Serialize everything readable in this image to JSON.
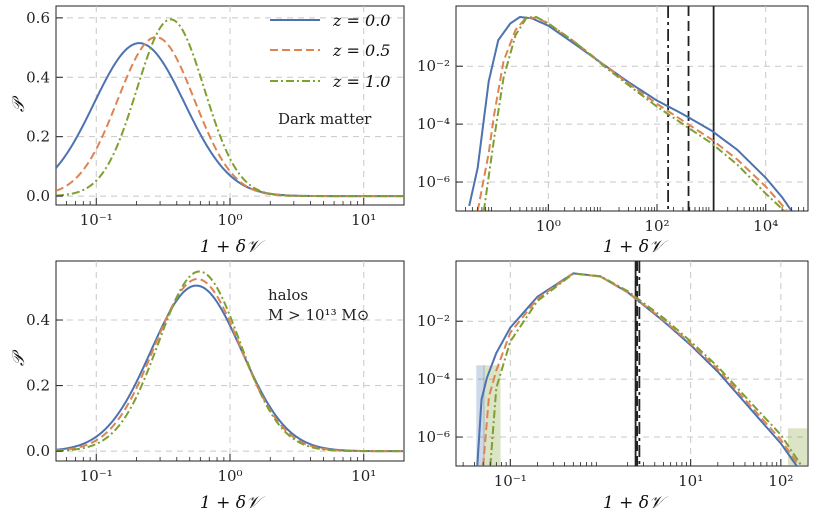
{
  "colors": {
    "z0": "#4c72b0",
    "z05": "#dd8452",
    "z1": "#7f9f2f",
    "vline": "#222222",
    "grid": "#c8c8c8"
  },
  "legend": {
    "entries": [
      {
        "key": "z0",
        "label": "z = 0.0",
        "dash": "solid"
      },
      {
        "key": "z05",
        "label": "z = 0.5",
        "dash": "dashed"
      },
      {
        "key": "z1",
        "label": "z = 1.0",
        "dash": "dashdot"
      }
    ]
  },
  "chart_data": [
    {
      "id": "tl",
      "type": "line",
      "title": "",
      "annotation": [
        "Dark matter"
      ],
      "xlabel": "1 + δ𝒱",
      "ylabel": "𝒫",
      "xscale": "log",
      "yscale": "linear",
      "xlim": [
        0.05,
        20
      ],
      "ylim": [
        -0.03,
        0.64
      ],
      "xticks": [
        0.1,
        1,
        10
      ],
      "xticklabels": [
        "10⁻¹",
        "10⁰",
        "10¹"
      ],
      "yticks": [
        0,
        0.2,
        0.4,
        0.6
      ],
      "yticklabels": [
        "0.0",
        "0.2",
        "0.4",
        "0.6"
      ],
      "series": [
        {
          "name": "z = 0.0",
          "key": "z0",
          "dash": "solid",
          "model": "lognormal",
          "mu": 0.21,
          "sigma": 0.78,
          "amp": 0.515
        },
        {
          "name": "z = 0.5",
          "key": "z05",
          "dash": "dashed",
          "model": "lognormal",
          "mu": 0.28,
          "sigma": 0.66,
          "amp": 0.535
        },
        {
          "name": "z = 1.0",
          "key": "z1",
          "dash": "dashdot",
          "model": "lognormal",
          "mu": 0.36,
          "sigma": 0.58,
          "amp": 0.595
        }
      ]
    },
    {
      "id": "tr",
      "type": "line",
      "title": "",
      "annotation": [],
      "xlabel": "1 + δ𝒱",
      "ylabel": "",
      "xscale": "log",
      "yscale": "log",
      "xlim": [
        0.02,
        60000
      ],
      "ylim": [
        1e-07,
        1.2
      ],
      "xticks": [
        1,
        100,
        10000
      ],
      "xticklabels": [
        "10⁰",
        "10²",
        "10⁴"
      ],
      "yticks": [
        1e-06,
        0.0001,
        0.01
      ],
      "yticklabels": [
        "10⁻⁶",
        "10⁻⁴",
        "10⁻²"
      ],
      "vlines": [
        {
          "x": 160,
          "dash": "dashdot"
        },
        {
          "x": 380,
          "dash": "dashed"
        },
        {
          "x": 1100,
          "dash": "solid"
        }
      ],
      "series": [
        {
          "name": "z = 0.0",
          "key": "z0",
          "dash": "solid",
          "model": "points",
          "x": [
            0.035,
            0.05,
            0.08,
            0.12,
            0.2,
            0.3,
            0.5,
            1,
            3,
            10,
            30,
            100,
            300,
            1000,
            3000,
            10000,
            20000,
            30000
          ],
          "y": [
            1.5e-07,
            3e-06,
            0.003,
            0.08,
            0.3,
            0.5,
            0.45,
            0.25,
            0.06,
            0.012,
            0.0028,
            0.00065,
            0.00022,
            6e-05,
            1.3e-05,
            1.4e-06,
            3e-07,
            1e-07
          ]
        },
        {
          "name": "z = 0.5",
          "key": "z05",
          "dash": "dashed",
          "model": "points",
          "x": [
            0.05,
            0.08,
            0.1,
            0.15,
            0.25,
            0.38,
            0.6,
            1,
            3,
            10,
            30,
            100,
            300,
            1000,
            3000,
            10000,
            25000
          ],
          "y": [
            1e-07,
            1e-05,
            0.0002,
            0.015,
            0.18,
            0.45,
            0.48,
            0.3,
            0.07,
            0.012,
            0.0025,
            0.0005,
            0.00013,
            3e-05,
            6e-06,
            7e-07,
            1e-07
          ]
        },
        {
          "name": "z = 1.0",
          "key": "z1",
          "dash": "dashdot",
          "model": "points",
          "x": [
            0.065,
            0.1,
            0.15,
            0.25,
            0.4,
            0.6,
            1,
            3,
            10,
            30,
            100,
            300,
            1000,
            3000,
            10000,
            22000
          ],
          "y": [
            1e-07,
            3e-05,
            0.004,
            0.12,
            0.48,
            0.5,
            0.3,
            0.07,
            0.011,
            0.0022,
            0.0004,
            0.0001,
            2.2e-05,
            4e-06,
            4e-07,
            1e-07
          ]
        }
      ]
    },
    {
      "id": "bl",
      "type": "line",
      "title": "",
      "annotation": [
        "halos",
        "M > 10¹³ M⊙"
      ],
      "xlabel": "1 + δ𝒱",
      "ylabel": "𝒫",
      "xscale": "log",
      "yscale": "linear",
      "xlim": [
        0.05,
        20
      ],
      "ylim": [
        -0.03,
        0.58
      ],
      "xticks": [
        0.1,
        1,
        10
      ],
      "xticklabels": [
        "10⁻¹",
        "10⁰",
        "10¹"
      ],
      "yticks": [
        0,
        0.2,
        0.4
      ],
      "yticklabels": [
        "0.0",
        "0.2",
        "0.4"
      ],
      "series": [
        {
          "name": "z = 0.0",
          "key": "z0",
          "dash": "solid",
          "model": "lognormal",
          "mu": 0.56,
          "sigma": 0.78,
          "amp": 0.505
        },
        {
          "name": "z = 0.5",
          "key": "z05",
          "dash": "dashed",
          "model": "lognormal",
          "mu": 0.57,
          "sigma": 0.74,
          "amp": 0.525
        },
        {
          "name": "z = 1.0",
          "key": "z1",
          "dash": "dashdot",
          "model": "lognormal",
          "mu": 0.59,
          "sigma": 0.7,
          "amp": 0.548
        }
      ]
    },
    {
      "id": "br",
      "type": "line",
      "title": "",
      "annotation": [],
      "xlabel": "1 + δ𝒱",
      "ylabel": "",
      "xscale": "log",
      "yscale": "log",
      "xlim": [
        0.025,
        200
      ],
      "ylim": [
        1e-07,
        1.2
      ],
      "xticks": [
        0.1,
        10,
        100
      ],
      "xticklabels": [
        "10⁻¹",
        "10¹",
        "10²"
      ],
      "yticks": [
        1e-06,
        0.0001,
        0.01
      ],
      "yticklabels": [
        "10⁻⁶",
        "10⁻⁴",
        "10⁻²"
      ],
      "vlines": [
        {
          "x": 2.45,
          "dash": "solid"
        },
        {
          "x": 2.55,
          "dash": "dashed"
        },
        {
          "x": 2.7,
          "dash": "dashdot"
        }
      ],
      "bands": [
        {
          "key": "z1",
          "x": [
            0.05,
            0.078
          ],
          "ylow": 1e-07,
          "yhigh": 0.0003
        },
        {
          "key": "z1",
          "x": [
            120,
            200
          ],
          "ylow": 1e-07,
          "yhigh": 2e-06
        },
        {
          "key": "z0",
          "x": [
            0.042,
            0.052
          ],
          "ylow": 1e-07,
          "yhigh": 0.0003
        }
      ],
      "series": [
        {
          "name": "z = 0.0",
          "key": "z0",
          "dash": "solid",
          "model": "points",
          "x": [
            0.043,
            0.048,
            0.055,
            0.07,
            0.1,
            0.2,
            0.5,
            1,
            2,
            5,
            10,
            20,
            50,
            100,
            150
          ],
          "y": [
            1e-07,
            2e-05,
            0.00011,
            0.0008,
            0.006,
            0.07,
            0.45,
            0.35,
            0.1,
            0.01,
            0.0015,
            0.00018,
            7e-06,
            6e-07,
            1e-07
          ]
        },
        {
          "name": "z = 0.5",
          "key": "z05",
          "dash": "dashed",
          "model": "points",
          "x": [
            0.05,
            0.058,
            0.07,
            0.1,
            0.2,
            0.5,
            1,
            2,
            5,
            10,
            20,
            50,
            100,
            160
          ],
          "y": [
            1e-07,
            2.5e-05,
            0.0002,
            0.004,
            0.06,
            0.45,
            0.35,
            0.1,
            0.011,
            0.0017,
            0.00022,
            9e-06,
            8e-07,
            1e-07
          ]
        },
        {
          "name": "z = 1.0",
          "key": "z1",
          "dash": "dashdot",
          "model": "points",
          "x": [
            0.06,
            0.07,
            0.1,
            0.2,
            0.5,
            1,
            2,
            5,
            10,
            20,
            50,
            100,
            170
          ],
          "y": [
            1e-07,
            5e-05,
            0.002,
            0.05,
            0.44,
            0.36,
            0.11,
            0.013,
            0.002,
            0.00027,
            1.2e-05,
            1.2e-06,
            1e-07
          ]
        }
      ]
    }
  ]
}
